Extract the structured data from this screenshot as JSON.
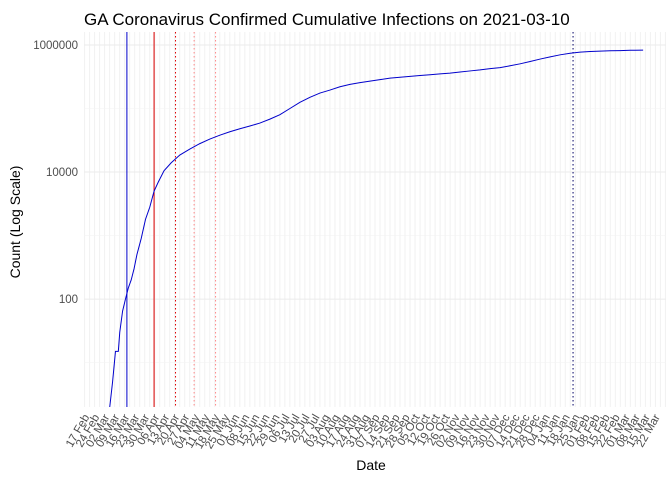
{
  "chart_data": {
    "type": "line",
    "title": "GA Coronavirus Confirmed Cumulative Infections on 2021-03-10",
    "xlabel": "Date",
    "ylabel": "Count (Log Scale)",
    "y_scale": "log",
    "ylim": [
      2,
      1600000
    ],
    "xlim": [
      "2020-02-13",
      "2021-03-26"
    ],
    "y_ticks": [
      100,
      10000,
      1000000
    ],
    "y_tick_labels": [
      "100",
      "10000",
      "1000000"
    ],
    "x_tick_labels": [
      "17 Feb",
      "24 Feb",
      "02 Mar",
      "09 Mar",
      "16 Mar",
      "23 Mar",
      "30 Mar",
      "06 Apr",
      "13 Apr",
      "20 Apr",
      "27 Apr",
      "04 May",
      "11 May",
      "18 May",
      "25 May",
      "01 Jun",
      "08 Jun",
      "15 Jun",
      "22 Jun",
      "29 Jun",
      "06 Jul",
      "13 Jul",
      "20 Jul",
      "27 Jul",
      "03 Aug",
      "10 Aug",
      "17 Aug",
      "24 Aug",
      "31 Aug",
      "07 Sep",
      "14 Sep",
      "21 Sep",
      "28 Sep",
      "05 Oct",
      "12 Oct",
      "19 Oct",
      "26 Oct",
      "02 Nov",
      "09 Nov",
      "16 Nov",
      "23 Nov",
      "30 Nov",
      "07 Dec",
      "14 Dec",
      "21 Dec",
      "28 Dec",
      "04 Jan",
      "11 Jan",
      "18 Jan",
      "25 Jan",
      "01 Feb",
      "08 Feb",
      "15 Feb",
      "22 Feb",
      "01 Mar",
      "08 Mar",
      "15 Mar",
      "22 Mar"
    ],
    "x_tick_dates": [
      "2020-02-17",
      "2020-02-24",
      "2020-03-02",
      "2020-03-09",
      "2020-03-16",
      "2020-03-23",
      "2020-03-30",
      "2020-04-06",
      "2020-04-13",
      "2020-04-20",
      "2020-04-27",
      "2020-05-04",
      "2020-05-11",
      "2020-05-18",
      "2020-05-25",
      "2020-06-01",
      "2020-06-08",
      "2020-06-15",
      "2020-06-22",
      "2020-06-29",
      "2020-07-06",
      "2020-07-13",
      "2020-07-20",
      "2020-07-27",
      "2020-08-03",
      "2020-08-10",
      "2020-08-17",
      "2020-08-24",
      "2020-08-31",
      "2020-09-07",
      "2020-09-14",
      "2020-09-21",
      "2020-09-28",
      "2020-10-05",
      "2020-10-12",
      "2020-10-19",
      "2020-10-26",
      "2020-11-02",
      "2020-11-09",
      "2020-11-16",
      "2020-11-23",
      "2020-11-30",
      "2020-12-07",
      "2020-12-14",
      "2020-12-21",
      "2020-12-28",
      "2021-01-04",
      "2021-01-11",
      "2021-01-18",
      "2021-01-25",
      "2021-02-01",
      "2021-02-08",
      "2021-02-15",
      "2021-02-22",
      "2021-03-01",
      "2021-03-08",
      "2021-03-15",
      "2021-03-22"
    ],
    "grid": true,
    "series": [
      {
        "color": "#0000cc",
        "points": [
          [
            "2020-03-02",
            2
          ],
          [
            "2020-03-04",
            5
          ],
          [
            "2020-03-06",
            15
          ],
          [
            "2020-03-08",
            15
          ],
          [
            "2020-03-09",
            30
          ],
          [
            "2020-03-11",
            65
          ],
          [
            "2020-03-13",
            100
          ],
          [
            "2020-03-15",
            150
          ],
          [
            "2020-03-17",
            200
          ],
          [
            "2020-03-19",
            300
          ],
          [
            "2020-03-21",
            500
          ],
          [
            "2020-03-24",
            900
          ],
          [
            "2020-03-27",
            1800
          ],
          [
            "2020-03-30",
            2800
          ],
          [
            "2020-04-02",
            5000
          ],
          [
            "2020-04-05",
            7000
          ],
          [
            "2020-04-09",
            10500
          ],
          [
            "2020-04-14",
            14000
          ],
          [
            "2020-04-20",
            18500
          ],
          [
            "2020-04-27",
            23000
          ],
          [
            "2020-05-04",
            28000
          ],
          [
            "2020-05-11",
            33000
          ],
          [
            "2020-05-18",
            38000
          ],
          [
            "2020-05-25",
            43000
          ],
          [
            "2020-06-01",
            48000
          ],
          [
            "2020-06-08",
            53000
          ],
          [
            "2020-06-15",
            59000
          ],
          [
            "2020-06-22",
            68000
          ],
          [
            "2020-06-29",
            80000
          ],
          [
            "2020-07-06",
            100000
          ],
          [
            "2020-07-13",
            125000
          ],
          [
            "2020-07-20",
            150000
          ],
          [
            "2020-07-27",
            175000
          ],
          [
            "2020-08-03",
            195000
          ],
          [
            "2020-08-10",
            220000
          ],
          [
            "2020-08-17",
            240000
          ],
          [
            "2020-08-24",
            255000
          ],
          [
            "2020-08-31",
            270000
          ],
          [
            "2020-09-07",
            285000
          ],
          [
            "2020-09-14",
            300000
          ],
          [
            "2020-09-21",
            310000
          ],
          [
            "2020-09-28",
            320000
          ],
          [
            "2020-10-05",
            330000
          ],
          [
            "2020-10-12",
            340000
          ],
          [
            "2020-10-19",
            350000
          ],
          [
            "2020-10-26",
            360000
          ],
          [
            "2020-11-02",
            375000
          ],
          [
            "2020-11-09",
            390000
          ],
          [
            "2020-11-16",
            405000
          ],
          [
            "2020-11-23",
            425000
          ],
          [
            "2020-11-30",
            440000
          ],
          [
            "2020-12-07",
            470000
          ],
          [
            "2020-12-14",
            505000
          ],
          [
            "2020-12-21",
            550000
          ],
          [
            "2020-12-28",
            600000
          ],
          [
            "2021-01-04",
            650000
          ],
          [
            "2021-01-11",
            700000
          ],
          [
            "2021-01-18",
            740000
          ],
          [
            "2021-01-25",
            770000
          ],
          [
            "2021-02-01",
            790000
          ],
          [
            "2021-02-08",
            800000
          ],
          [
            "2021-02-15",
            810000
          ],
          [
            "2021-02-22",
            815000
          ],
          [
            "2021-03-01",
            825000
          ],
          [
            "2021-03-10",
            830000
          ]
        ]
      }
    ],
    "reference_lines": [
      {
        "date": "2020-03-14",
        "color": "#0000cc",
        "style": "solid"
      },
      {
        "date": "2020-04-02",
        "color": "#dd0000",
        "style": "solid"
      },
      {
        "date": "2020-04-17",
        "color": "#dd0000",
        "style": "dotted"
      },
      {
        "date": "2020-04-30",
        "color": "#ff8888",
        "style": "dotted"
      },
      {
        "date": "2020-05-15",
        "color": "#ff8888",
        "style": "dotted"
      },
      {
        "date": "2021-01-20",
        "color": "#000066",
        "style": "dotted"
      }
    ]
  }
}
